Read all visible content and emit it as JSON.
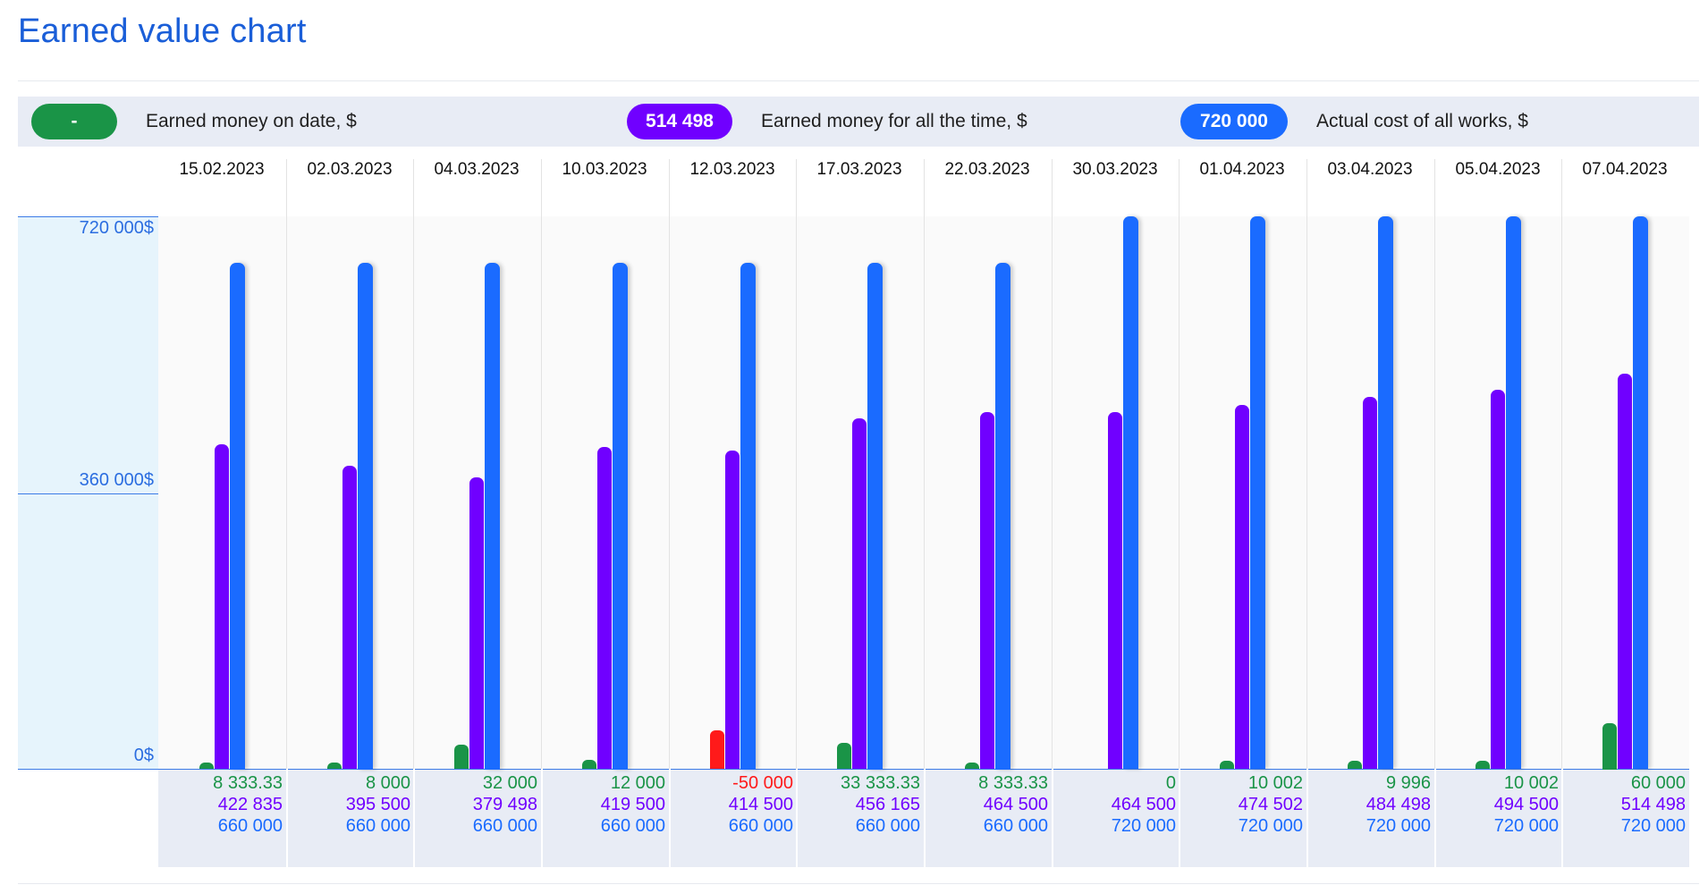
{
  "page_title": "Earned value chart",
  "legend": {
    "earned_on_date": {
      "value": "-",
      "label": "Earned money on date, $",
      "color": "#1a9447"
    },
    "earned_all_time": {
      "value": "514 498",
      "label": "Earned money for all the time, $",
      "color": "#7000ff"
    },
    "actual_cost": {
      "value": "720 000",
      "label": "Actual cost of all works, $",
      "color": "#1a6bff"
    }
  },
  "colors": {
    "earned_on_date": "#1a9447",
    "negative": "#ff1a1a",
    "earned_all_time": "#7000ff",
    "actual_cost": "#1a6bff"
  },
  "chart_data": {
    "type": "bar",
    "title": "Earned value chart",
    "ylim": [
      0,
      720000
    ],
    "yticks": [
      "720 000$",
      "360 000$",
      "0$"
    ],
    "categories": [
      "15.02.2023",
      "02.03.2023",
      "04.03.2023",
      "10.03.2023",
      "12.03.2023",
      "17.03.2023",
      "22.03.2023",
      "30.03.2023",
      "01.04.2023",
      "03.04.2023",
      "05.04.2023",
      "07.04.2023"
    ],
    "series": [
      {
        "name": "Earned money on date, $",
        "values": [
          8333.33,
          8000,
          32000,
          12000,
          -50000,
          33333.33,
          8333.33,
          0,
          10002,
          9996,
          10002,
          60000
        ],
        "labels": [
          "8 333.33",
          "8 000",
          "32 000",
          "12 000",
          "-50 000",
          "33 333.33",
          "8 333.33",
          "0",
          "10 002",
          "9 996",
          "10 002",
          "60 000"
        ]
      },
      {
        "name": "Earned money for all the time, $",
        "values": [
          422835,
          395500,
          379498,
          419500,
          414500,
          456165,
          464500,
          464500,
          474502,
          484498,
          494500,
          514498
        ],
        "labels": [
          "422 835",
          "395 500",
          "379 498",
          "419 500",
          "414 500",
          "456 165",
          "464 500",
          "464 500",
          "474 502",
          "484 498",
          "494 500",
          "514 498"
        ]
      },
      {
        "name": "Actual cost of all works, $",
        "values": [
          660000,
          660000,
          660000,
          660000,
          660000,
          660000,
          660000,
          720000,
          720000,
          720000,
          720000,
          720000
        ],
        "labels": [
          "660 000",
          "660 000",
          "660 000",
          "660 000",
          "660 000",
          "660 000",
          "660 000",
          "720 000",
          "720 000",
          "720 000",
          "720 000",
          "720 000"
        ]
      }
    ]
  }
}
